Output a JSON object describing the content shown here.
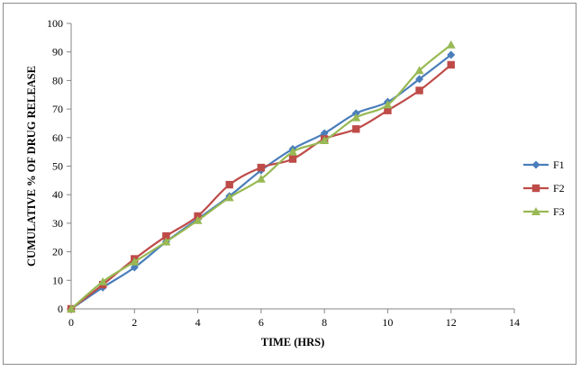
{
  "chart_data": {
    "type": "line",
    "title": "",
    "xlabel": "TIME (HRS)",
    "ylabel": "CUMULATIVE % OF DRUG RELEASE",
    "xlim": [
      0,
      14
    ],
    "ylim": [
      0,
      100
    ],
    "x_ticks": [
      0,
      2,
      4,
      6,
      8,
      10,
      12,
      14
    ],
    "y_ticks": [
      0,
      10,
      20,
      30,
      40,
      50,
      60,
      70,
      80,
      90,
      100
    ],
    "grid": false,
    "legend_position": "right",
    "x": [
      0,
      1,
      2,
      3,
      4,
      5,
      6,
      7,
      8,
      9,
      10,
      11,
      12
    ],
    "series": [
      {
        "name": "F1",
        "color": "#4a7ebb",
        "marker": "diamond",
        "values": [
          0,
          7.5,
          14.5,
          23.5,
          31.5,
          39.5,
          48.5,
          56,
          61.5,
          68.5,
          72.5,
          80.5,
          89
        ]
      },
      {
        "name": "F2",
        "color": "#be4b48",
        "marker": "square",
        "values": [
          0,
          8.5,
          17.5,
          25.5,
          32.5,
          43.5,
          49.5,
          52.5,
          59.5,
          63,
          69.5,
          76.5,
          85.5
        ]
      },
      {
        "name": "F3",
        "color": "#98b954",
        "marker": "triangle",
        "values": [
          0,
          9.5,
          16.5,
          23.5,
          31,
          39,
          45.5,
          55,
          59,
          67,
          71.5,
          83.5,
          92.5
        ]
      }
    ]
  }
}
